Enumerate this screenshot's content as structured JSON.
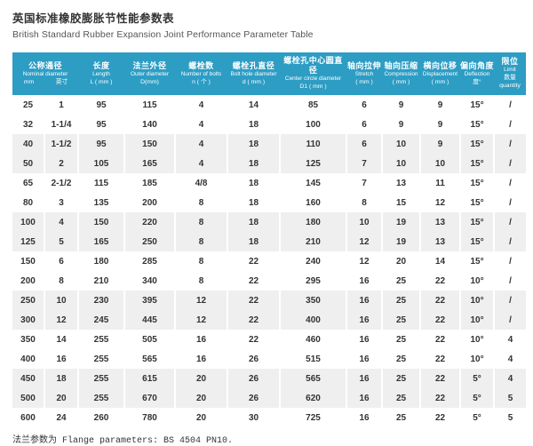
{
  "page": {
    "title_zh": "英国标准橡胶膨胀节性能参数表",
    "title_en": "British Standard Rubber Expansion Joint Performance Parameter Table",
    "footer": "法兰参数为 Flange parameters: BS 4504 PN10."
  },
  "colors": {
    "header_bg": "#2d9dc4",
    "band_bg": "#efefef",
    "text": "#333333"
  },
  "table": {
    "header": {
      "nominal": {
        "zh": "公称通径",
        "en": "Nominal diameter",
        "sub_mm": "mm",
        "sub_inch": "英寸"
      },
      "columns": [
        {
          "key": "length",
          "zh": "长度",
          "en": "Length",
          "unit": "L ( mm )"
        },
        {
          "key": "outer-diameter",
          "zh": "法兰外径",
          "en": "Outer diameter",
          "unit": "D(mm)"
        },
        {
          "key": "bolts",
          "zh": "螺栓数",
          "en": "Number of bolts",
          "unit": "n ( 个 )"
        },
        {
          "key": "bolt-hole",
          "zh": "螺栓孔直径",
          "en": "Bolt hole diameter",
          "unit": "d ( mm )"
        },
        {
          "key": "center-circle",
          "zh": "螺栓孔中心圆直径",
          "en": "Center circle diameter",
          "unit": "D1 ( mm )"
        },
        {
          "key": "stretch",
          "zh": "轴向拉伸",
          "en": "Stretch",
          "unit": "( mm )"
        },
        {
          "key": "compression",
          "zh": "轴向压缩",
          "en": "Compression",
          "unit": "( mm )"
        },
        {
          "key": "displacement",
          "zh": "横向位移",
          "en": "Displacement",
          "unit": "( mm )"
        },
        {
          "key": "deflection",
          "zh": "偏向角度",
          "en": "Deflection",
          "unit": "度°"
        },
        {
          "key": "limit",
          "zh": "限位",
          "en": "Limit",
          "unit": "数量 quantity"
        }
      ]
    },
    "rows": [
      [
        "25",
        "1",
        "95",
        "115",
        "4",
        "14",
        "85",
        "6",
        "9",
        "9",
        "15°",
        "/"
      ],
      [
        "32",
        "1-1/4",
        "95",
        "140",
        "4",
        "18",
        "100",
        "6",
        "9",
        "9",
        "15°",
        "/"
      ],
      [
        "40",
        "1-1/2",
        "95",
        "150",
        "4",
        "18",
        "110",
        "6",
        "10",
        "9",
        "15°",
        "/"
      ],
      [
        "50",
        "2",
        "105",
        "165",
        "4",
        "18",
        "125",
        "7",
        "10",
        "10",
        "15°",
        "/"
      ],
      [
        "65",
        "2-1/2",
        "115",
        "185",
        "4/8",
        "18",
        "145",
        "7",
        "13",
        "11",
        "15°",
        "/"
      ],
      [
        "80",
        "3",
        "135",
        "200",
        "8",
        "18",
        "160",
        "8",
        "15",
        "12",
        "15°",
        "/"
      ],
      [
        "100",
        "4",
        "150",
        "220",
        "8",
        "18",
        "180",
        "10",
        "19",
        "13",
        "15°",
        "/"
      ],
      [
        "125",
        "5",
        "165",
        "250",
        "8",
        "18",
        "210",
        "12",
        "19",
        "13",
        "15°",
        "/"
      ],
      [
        "150",
        "6",
        "180",
        "285",
        "8",
        "22",
        "240",
        "12",
        "20",
        "14",
        "15°",
        "/"
      ],
      [
        "200",
        "8",
        "210",
        "340",
        "8",
        "22",
        "295",
        "16",
        "25",
        "22",
        "10°",
        "/"
      ],
      [
        "250",
        "10",
        "230",
        "395",
        "12",
        "22",
        "350",
        "16",
        "25",
        "22",
        "10°",
        "/"
      ],
      [
        "300",
        "12",
        "245",
        "445",
        "12",
        "22",
        "400",
        "16",
        "25",
        "22",
        "10°",
        "/"
      ],
      [
        "350",
        "14",
        "255",
        "505",
        "16",
        "22",
        "460",
        "16",
        "25",
        "22",
        "10°",
        "4"
      ],
      [
        "400",
        "16",
        "255",
        "565",
        "16",
        "26",
        "515",
        "16",
        "25",
        "22",
        "10°",
        "4"
      ],
      [
        "450",
        "18",
        "255",
        "615",
        "20",
        "26",
        "565",
        "16",
        "25",
        "22",
        "5°",
        "4"
      ],
      [
        "500",
        "20",
        "255",
        "670",
        "20",
        "26",
        "620",
        "16",
        "25",
        "22",
        "5°",
        "5"
      ],
      [
        "600",
        "24",
        "260",
        "780",
        "20",
        "30",
        "725",
        "16",
        "25",
        "22",
        "5°",
        "5"
      ]
    ]
  }
}
